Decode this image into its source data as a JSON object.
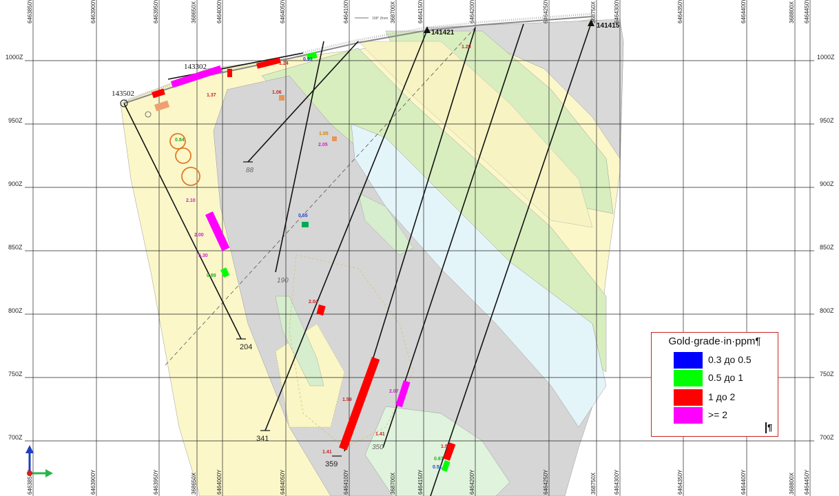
{
  "section": {
    "elevation_labels": [
      "1000Z",
      "950Z",
      "900Z",
      "850Z",
      "800Z",
      "750Z",
      "700Z"
    ],
    "coord_labels_top": [
      "6463850Y",
      "6463900Y",
      "6463950Y",
      "368650X",
      "6464000Y",
      "6464050Y",
      "6464100Y",
      "368700X",
      "6464150Y",
      "6464200Y",
      "6464250Y",
      "368750X",
      "6464300Y",
      "6464350Y",
      "6464400Y",
      "368800X",
      "6464450Y"
    ],
    "coord_labels_bottom": [
      "6463850Y",
      "6463900Y",
      "6463950Y",
      "368650X",
      "6464000Y",
      "6464050Y",
      "6464100Y",
      "368700X",
      "6464150Y",
      "6464200Y",
      "6464250Y",
      "368750X",
      "6464300Y",
      "6464350Y",
      "6464400Y",
      "368800X",
      "6464450Y"
    ],
    "drillholes": [
      {
        "id": "143502",
        "end_depth": "204"
      },
      {
        "id": "143302",
        "end_depth": "190"
      },
      {
        "id": "141421",
        "end_depth": "341"
      },
      {
        "id": "141415",
        "end_depth": "359"
      }
    ],
    "other_depth_labels": [
      "88",
      "350"
    ],
    "grade_values": [
      "1.06",
      "1.05",
      "2.05",
      "2.10",
      "2.00",
      "5.30",
      "0.89",
      "2.04",
      "1.29",
      "1.41",
      "1.41",
      "0.51",
      "0.67",
      "1.59",
      "0.55",
      "0.84",
      "1.95",
      "1.24",
      "0.93",
      "2.07",
      "1.37"
    ],
    "top_note": "158° (from"
  },
  "legend": {
    "title": "Gold·grade·in·ppm¶",
    "items": [
      {
        "label": "0.3 до 0.5",
        "color": "#0000ff"
      },
      {
        "label": "0.5 до 1",
        "color": "#00ff00"
      },
      {
        "label": "1 до 2",
        "color": "#ff0000"
      },
      {
        "label": ">= 2",
        "color": "#ff00ff"
      }
    ],
    "end_mark": "¶"
  },
  "colors": {
    "background": "#ffffff",
    "yellow_unit": "#fbf7c9",
    "grey_unit": "#d9d9d9",
    "green_unit": "#d9eebf",
    "light_green_unit": "#dff3dd",
    "cyan_unit": "#e4f5fa",
    "grid_line": "#222222",
    "north_arrow": "#1f3fbf",
    "east_arrow": "#2bb34a",
    "origin_dot": "#e01b1b"
  }
}
